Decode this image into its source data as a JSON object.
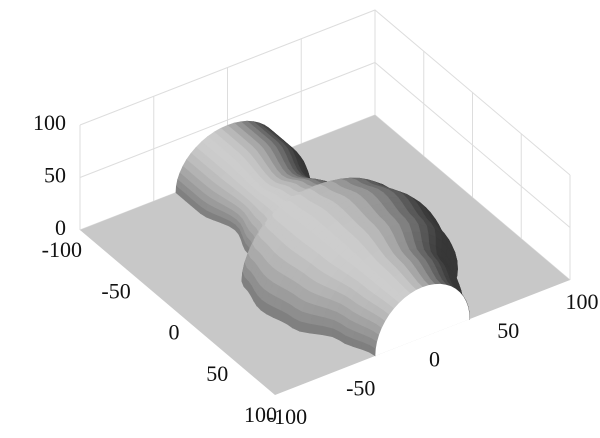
{
  "chart_data": {
    "type": "surface",
    "xlim": [
      -100,
      100
    ],
    "ylim": [
      -100,
      100
    ],
    "zlim": [
      0,
      100
    ],
    "xticks": [
      -100,
      -50,
      0,
      50,
      100
    ],
    "yticks": [
      -100,
      -50,
      0,
      50,
      100
    ],
    "zticks": [
      0,
      50,
      100
    ],
    "grid": true,
    "color": "#8c8c8c",
    "floor_color": "#c8c8c8",
    "surface": {
      "x": [
        -100,
        -75,
        -50,
        -25,
        0,
        25,
        50,
        75,
        100
      ],
      "radius": [
        35,
        35,
        28,
        35,
        55,
        60,
        55,
        40,
        32
      ],
      "height": [
        45,
        45,
        35,
        45,
        65,
        72,
        68,
        55,
        48
      ]
    }
  }
}
